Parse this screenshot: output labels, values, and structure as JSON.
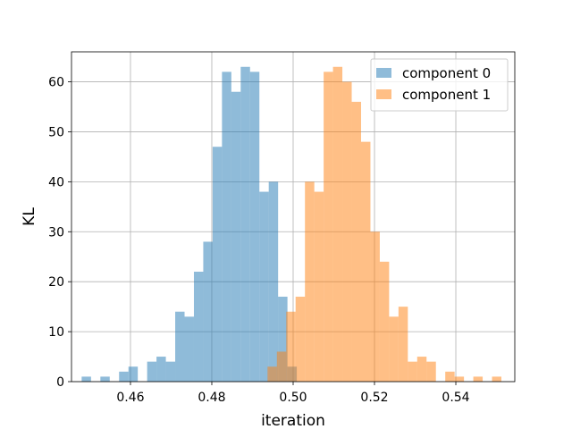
{
  "chart_data": {
    "type": "histogram",
    "xlabel": "iteration",
    "ylabel": "KL",
    "xlim": [
      0.4455,
      0.5545
    ],
    "ylim": [
      0,
      66
    ],
    "xticks": [
      0.46,
      0.48,
      0.5,
      0.52,
      0.54
    ],
    "xtick_labels": [
      "0.46",
      "0.48",
      "0.50",
      "0.52",
      "0.54"
    ],
    "yticks": [
      0,
      10,
      20,
      30,
      40,
      50,
      60
    ],
    "ytick_labels": [
      "0",
      "10",
      "20",
      "30",
      "40",
      "50",
      "60"
    ],
    "grid": true,
    "legend_position": "top-right",
    "series": [
      {
        "name": "component 0",
        "color": "#1f77b4",
        "alpha": 0.5,
        "bin_start": 0.448,
        "bin_width": 0.0023,
        "counts": [
          1,
          0,
          1,
          0,
          2,
          3,
          0,
          4,
          5,
          4,
          14,
          13,
          22,
          28,
          47,
          62,
          58,
          63,
          62,
          38,
          40,
          17,
          3,
          0,
          0
        ]
      },
      {
        "name": "component 1",
        "color": "#ff7f0e",
        "alpha": 0.5,
        "bin_start": 0.4937,
        "bin_width": 0.0023,
        "counts": [
          3,
          6,
          14,
          17,
          40,
          38,
          62,
          63,
          60,
          56,
          48,
          30,
          24,
          13,
          15,
          4,
          5,
          4,
          0,
          2,
          1,
          0,
          1,
          0,
          1
        ]
      }
    ]
  }
}
